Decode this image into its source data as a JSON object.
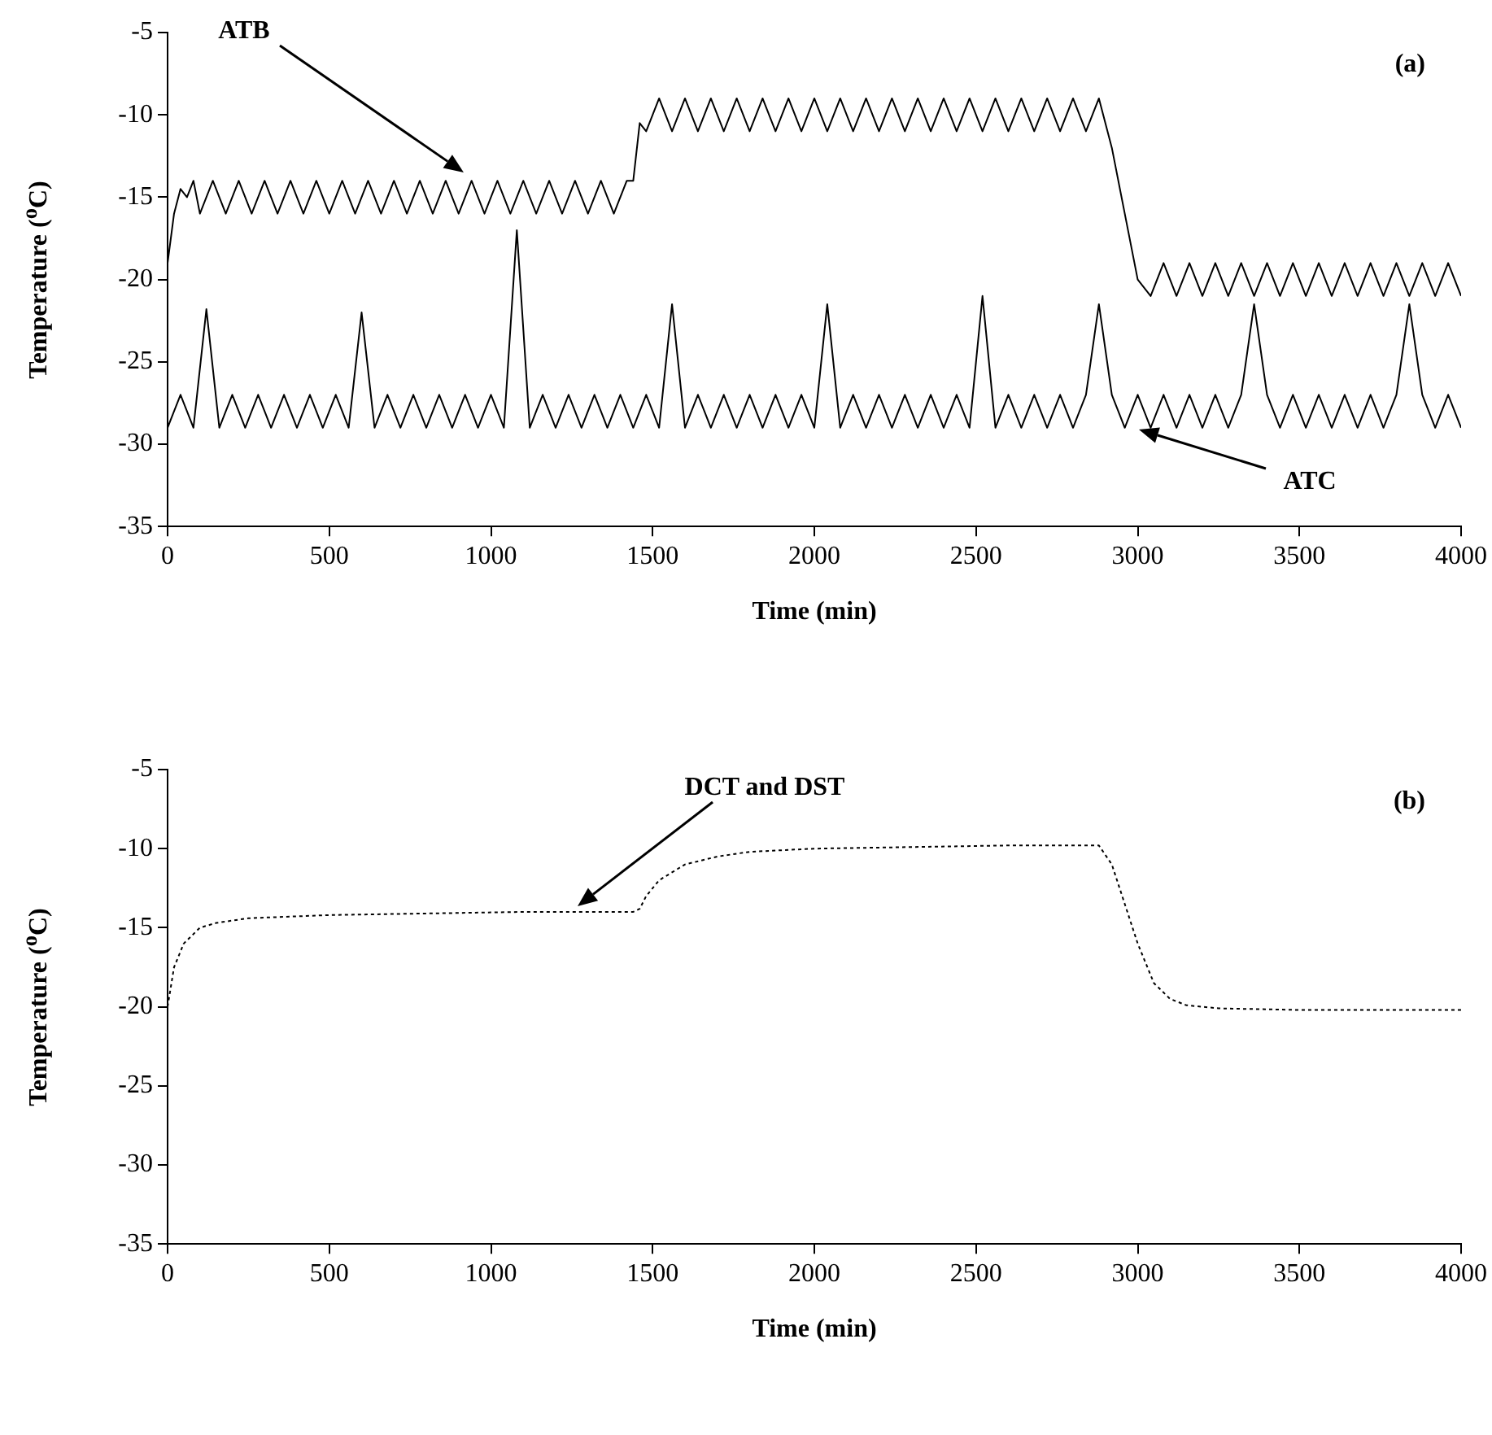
{
  "chart_data": [
    {
      "type": "line",
      "xlabel": "Time (min)",
      "ylabel": "Temperature ($^{o}$C)",
      "xlim": [
        0,
        4000
      ],
      "xticks": [
        0,
        500,
        1000,
        1500,
        2000,
        2500,
        3000,
        3500,
        4000
      ],
      "ylim": [
        -35,
        -5
      ],
      "yticks": [
        -35,
        -30,
        -25,
        -20,
        -15,
        -10,
        -5
      ],
      "grid": false,
      "legend": false,
      "marker": "none",
      "line_style": "solid",
      "annotations": [
        "(a)",
        "ATB",
        "ATC"
      ],
      "series": [
        {
          "color": "#000000",
          "x": [
            0,
            20,
            40,
            60,
            80,
            100,
            140,
            180,
            220,
            260,
            300,
            340,
            380,
            420,
            460,
            500,
            540,
            580,
            620,
            660,
            700,
            740,
            780,
            820,
            860,
            900,
            940,
            980,
            1020,
            1060,
            1100,
            1140,
            1180,
            1220,
            1260,
            1300,
            1340,
            1380,
            1420,
            1440,
            1460,
            1480,
            1520,
            1560,
            1600,
            1640,
            1680,
            1720,
            1760,
            1800,
            1840,
            1880,
            1920,
            1960,
            2000,
            2040,
            2080,
            2120,
            2160,
            2200,
            2240,
            2280,
            2320,
            2360,
            2400,
            2440,
            2480,
            2520,
            2560,
            2600,
            2640,
            2680,
            2720,
            2760,
            2800,
            2840,
            2880,
            2920,
            2960,
            3000,
            3040,
            3080,
            3120,
            3160,
            3200,
            3240,
            3280,
            3320,
            3360,
            3400,
            3440,
            3480,
            3520,
            3560,
            3600,
            3640,
            3680,
            3720,
            3760,
            3800,
            3840,
            3880,
            3920,
            3960,
            4000
          ],
          "values": [
            -19,
            -16,
            -14.5,
            -15,
            -14,
            -16,
            -14,
            -16,
            -14,
            -16,
            -14,
            -16,
            -14,
            -16,
            -14,
            -16,
            -14,
            -16,
            -14,
            -16,
            -14,
            -16,
            -14,
            -16,
            -14,
            -16,
            -14,
            -16,
            -14,
            -16,
            -14,
            -16,
            -14,
            -16,
            -14,
            -16,
            -14,
            -16,
            -14,
            -14,
            -10.5,
            -11,
            -9,
            -11,
            -9,
            -11,
            -9,
            -11,
            -9,
            -11,
            -9,
            -11,
            -9,
            -11,
            -9,
            -11,
            -9,
            -11,
            -9,
            -11,
            -9,
            -11,
            -9,
            -11,
            -9,
            -11,
            -9,
            -11,
            -9,
            -11,
            -9,
            -11,
            -9,
            -11,
            -9,
            -11,
            -9,
            -12,
            -16,
            -20,
            -21,
            -19,
            -21,
            -19,
            -21,
            -19,
            -21,
            -19,
            -21,
            -19,
            -21,
            -19,
            -21,
            -19,
            -21,
            -19,
            -21,
            -19,
            -21,
            -19,
            -21,
            -19,
            -21,
            -19,
            -21
          ]
        },
        {
          "color": "#000000",
          "x": [
            0,
            40,
            80,
            120,
            160,
            200,
            240,
            280,
            320,
            360,
            400,
            440,
            480,
            520,
            560,
            600,
            640,
            680,
            720,
            760,
            800,
            840,
            880,
            920,
            960,
            1000,
            1040,
            1080,
            1120,
            1160,
            1200,
            1240,
            1280,
            1320,
            1360,
            1400,
            1440,
            1480,
            1520,
            1560,
            1600,
            1640,
            1680,
            1720,
            1760,
            1800,
            1840,
            1880,
            1920,
            1960,
            2000,
            2040,
            2080,
            2120,
            2160,
            2200,
            2240,
            2280,
            2320,
            2360,
            2400,
            2440,
            2480,
            2520,
            2560,
            2600,
            2640,
            2680,
            2720,
            2760,
            2800,
            2840,
            2880,
            2920,
            2960,
            3000,
            3040,
            3080,
            3120,
            3160,
            3200,
            3240,
            3280,
            3320,
            3360,
            3400,
            3440,
            3480,
            3520,
            3560,
            3600,
            3640,
            3680,
            3720,
            3760,
            3800,
            3840,
            3880,
            3920,
            3960,
            4000
          ],
          "values": [
            -29,
            -27,
            -29,
            -21.8,
            -29,
            -27,
            -29,
            -27,
            -29,
            -27,
            -29,
            -27,
            -29,
            -27,
            -29,
            -22,
            -29,
            -27,
            -29,
            -27,
            -29,
            -27,
            -29,
            -27,
            -29,
            -27,
            -29,
            -17,
            -29,
            -27,
            -29,
            -27,
            -29,
            -27,
            -29,
            -27,
            -29,
            -27,
            -29,
            -21.5,
            -29,
            -27,
            -29,
            -27,
            -29,
            -27,
            -29,
            -27,
            -29,
            -27,
            -29,
            -21.5,
            -29,
            -27,
            -29,
            -27,
            -29,
            -27,
            -29,
            -27,
            -29,
            -27,
            -29,
            -21,
            -29,
            -27,
            -29,
            -27,
            -29,
            -27,
            -29,
            -27,
            -21.5,
            -27,
            -29,
            -27,
            -29,
            -27,
            -29,
            -27,
            -29,
            -27,
            -29,
            -27,
            -21.5,
            -27,
            -29,
            -27,
            -29,
            -27,
            -29,
            -27,
            -29,
            -27,
            -29,
            -27,
            -21.5,
            -27,
            -29,
            -27,
            -29
          ]
        }
      ]
    },
    {
      "type": "line",
      "xlabel": "Time (min)",
      "ylabel": "Temperature ($^{o}$C)",
      "xlim": [
        0,
        4000
      ],
      "xticks": [
        0,
        500,
        1000,
        1500,
        2000,
        2500,
        3000,
        3500,
        4000
      ],
      "ylim": [
        -35,
        -5
      ],
      "yticks": [
        -35,
        -30,
        -25,
        -20,
        -15,
        -10,
        -5
      ],
      "grid": false,
      "legend": false,
      "marker": "none",
      "line_style": "dotted",
      "annotations": [
        "(b)",
        "DCT and DST"
      ],
      "series": [
        {
          "color": "#000000",
          "x": [
            0,
            20,
            50,
            100,
            150,
            250,
            500,
            800,
            1100,
            1400,
            1440,
            1460,
            1480,
            1520,
            1600,
            1700,
            1800,
            2000,
            2300,
            2600,
            2880,
            2920,
            2960,
            3000,
            3050,
            3100,
            3150,
            3250,
            3500,
            4000
          ],
          "values": [
            -20,
            -17.5,
            -16,
            -15,
            -14.7,
            -14.4,
            -14.2,
            -14.1,
            -14,
            -14,
            -14,
            -13.8,
            -13,
            -12,
            -11,
            -10.5,
            -10.2,
            -10,
            -9.9,
            -9.8,
            -9.8,
            -11,
            -13.5,
            -16,
            -18.5,
            -19.5,
            -19.9,
            -20.1,
            -20.2,
            -20.2
          ]
        }
      ]
    }
  ]
}
